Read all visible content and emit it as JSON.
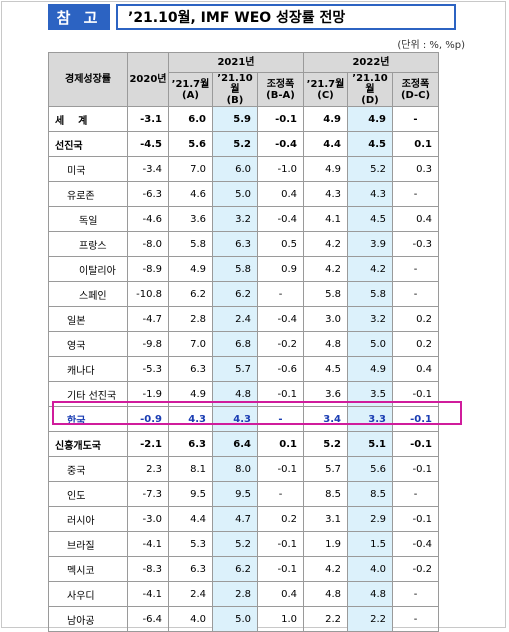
{
  "header": {
    "tag": "참 고",
    "title": "’21.10월, IMF WEO 성장률 전망"
  },
  "unit_label": "(단위 : %, %p)",
  "table": {
    "col_country": "경제성장률",
    "col_2020": "2020년",
    "group_2021": "2021년",
    "group_2022": "2022년",
    "sub_a": "’21.7월\n(A)",
    "sub_b": "’21.10월\n(B)",
    "sub_ba": "조정폭\n(B-A)",
    "sub_c": "’21.7월\n(C)",
    "sub_d": "’21.10월\n(D)",
    "sub_dc": "조정폭\n(D-C)",
    "rows": [
      {
        "name": "세    계",
        "v2020": "-3.1",
        "a": "6.0",
        "b": "5.9",
        "ba": "-0.1",
        "c": "4.9",
        "d": "4.9",
        "dc": "-"
      },
      {
        "name": "선진국",
        "v2020": "-4.5",
        "a": "5.6",
        "b": "5.2",
        "ba": "-0.4",
        "c": "4.4",
        "d": "4.5",
        "dc": "0.1"
      },
      {
        "name": "미국",
        "v2020": "-3.4",
        "a": "7.0",
        "b": "6.0",
        "ba": "-1.0",
        "c": "4.9",
        "d": "5.2",
        "dc": "0.3"
      },
      {
        "name": "유로존",
        "v2020": "-6.3",
        "a": "4.6",
        "b": "5.0",
        "ba": "0.4",
        "c": "4.3",
        "d": "4.3",
        "dc": "-"
      },
      {
        "name": "독일",
        "v2020": "-4.6",
        "a": "3.6",
        "b": "3.2",
        "ba": "-0.4",
        "c": "4.1",
        "d": "4.5",
        "dc": "0.4"
      },
      {
        "name": "프랑스",
        "v2020": "-8.0",
        "a": "5.8",
        "b": "6.3",
        "ba": "0.5",
        "c": "4.2",
        "d": "3.9",
        "dc": "-0.3"
      },
      {
        "name": "이탈리아",
        "v2020": "-8.9",
        "a": "4.9",
        "b": "5.8",
        "ba": "0.9",
        "c": "4.2",
        "d": "4.2",
        "dc": "-"
      },
      {
        "name": "스페인",
        "v2020": "-10.8",
        "a": "6.2",
        "b": "6.2",
        "ba": "-",
        "c": "5.8",
        "d": "5.8",
        "dc": "-"
      },
      {
        "name": "일본",
        "v2020": "-4.7",
        "a": "2.8",
        "b": "2.4",
        "ba": "-0.4",
        "c": "3.0",
        "d": "3.2",
        "dc": "0.2"
      },
      {
        "name": "영국",
        "v2020": "-9.8",
        "a": "7.0",
        "b": "6.8",
        "ba": "-0.2",
        "c": "4.8",
        "d": "5.0",
        "dc": "0.2"
      },
      {
        "name": "캐나다",
        "v2020": "-5.3",
        "a": "6.3",
        "b": "5.7",
        "ba": "-0.6",
        "c": "4.5",
        "d": "4.9",
        "dc": "0.4"
      },
      {
        "name": "기타 선진국",
        "v2020": "-1.9",
        "a": "4.9",
        "b": "4.8",
        "ba": "-0.1",
        "c": "3.6",
        "d": "3.5",
        "dc": "-0.1"
      },
      {
        "name": "한국",
        "v2020": "-0.9",
        "a": "4.3",
        "b": "4.3",
        "ba": "-",
        "c": "3.4",
        "d": "3.3",
        "dc": "-0.1"
      },
      {
        "name": "신흥개도국",
        "v2020": "-2.1",
        "a": "6.3",
        "b": "6.4",
        "ba": "0.1",
        "c": "5.2",
        "d": "5.1",
        "dc": "-0.1"
      },
      {
        "name": "중국",
        "v2020": "2.3",
        "a": "8.1",
        "b": "8.0",
        "ba": "-0.1",
        "c": "5.7",
        "d": "5.6",
        "dc": "-0.1"
      },
      {
        "name": "인도",
        "v2020": "-7.3",
        "a": "9.5",
        "b": "9.5",
        "ba": "-",
        "c": "8.5",
        "d": "8.5",
        "dc": "-"
      },
      {
        "name": "러시아",
        "v2020": "-3.0",
        "a": "4.4",
        "b": "4.7",
        "ba": "0.2",
        "c": "3.1",
        "d": "2.9",
        "dc": "-0.1"
      },
      {
        "name": "브라질",
        "v2020": "-4.1",
        "a": "5.3",
        "b": "5.2",
        "ba": "-0.1",
        "c": "1.9",
        "d": "1.5",
        "dc": "-0.4"
      },
      {
        "name": "멕시코",
        "v2020": "-8.3",
        "a": "6.3",
        "b": "6.2",
        "ba": "-0.1",
        "c": "4.2",
        "d": "4.0",
        "dc": "-0.2"
      },
      {
        "name": "사우디",
        "v2020": "-4.1",
        "a": "2.4",
        "b": "2.8",
        "ba": "0.4",
        "c": "4.8",
        "d": "4.8",
        "dc": "-"
      },
      {
        "name": "남아공",
        "v2020": "-6.4",
        "a": "4.0",
        "b": "5.0",
        "ba": "1.0",
        "c": "2.2",
        "d": "2.2",
        "dc": "-"
      }
    ]
  },
  "colors": {
    "tag_bg": "#2c63c2",
    "header_bg": "#d9d9d9",
    "highlight_col": "#dcf1fb",
    "korea_box": "#d01c9c",
    "korea_text": "#1a3db3"
  }
}
